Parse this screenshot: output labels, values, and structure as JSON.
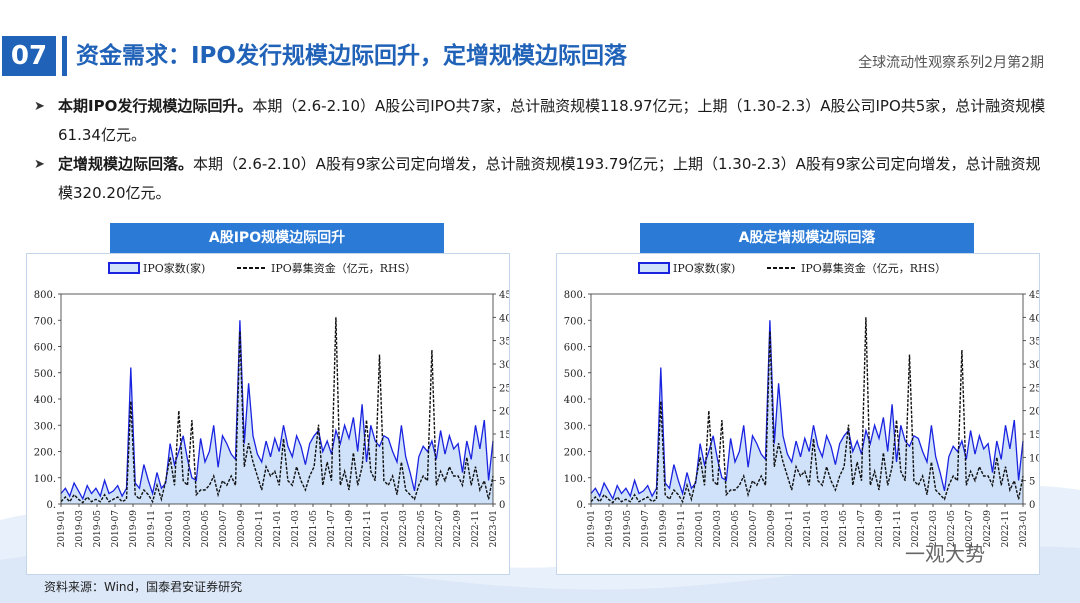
{
  "header": {
    "number": "07",
    "title": "资金需求：IPO发行规模边际回升，定增规模边际回落",
    "series": "全球流动性观察系列2月第2期"
  },
  "bullets": [
    {
      "bold": "本期IPO发行规模边际回升。",
      "text": "本期（2.6-2.10）A股公司IPO共7家，总计融资规模118.97亿元；上期（1.30-2.3）A股公司IPO共5家，总计融资规模61.34亿元。"
    },
    {
      "bold": "定增规模边际回落。",
      "text": "本期（2.6-2.10）A股有9家公司定向增发，总计融资规模193.79亿元；上期（1.30-2.3）A股有9家公司定向增发，总计融资规模320.20亿元。"
    }
  ],
  "source": "资料来源：Wind，国泰君安证券研究",
  "watermark": "一观大势",
  "colors": {
    "brand": "#1f62b8",
    "panel_header": "#2b7ad6",
    "series_line": "#1a23e0",
    "area_fill": "#cfe2fa"
  },
  "chart_data": [
    {
      "type": "area",
      "title": "A股IPO规模边际回升",
      "legend": [
        "IPO家数(家)",
        "IPO募集资金（亿元，RHS）"
      ],
      "legend_position": "top",
      "ylim": [
        0,
        800
      ],
      "y2lim": [
        0,
        45
      ],
      "yticks": [
        "0.",
        "100.",
        "200.",
        "300.",
        "400.",
        "500.",
        "600.",
        "700.",
        "800."
      ],
      "y2ticks": [
        "0",
        "5",
        "10",
        "15",
        "20",
        "25",
        "30",
        "35",
        "40",
        "45"
      ],
      "xticks": [
        "2019-01",
        "2019-03",
        "2019-05",
        "2019-07",
        "2019-09",
        "2019-11",
        "2020-01",
        "2020-03",
        "2020-05",
        "2020-07",
        "2020-09",
        "2020-11",
        "2021-01",
        "2021-03",
        "2021-05",
        "2021-07",
        "2021-09",
        "2021-11",
        "2022-01",
        "2022-03",
        "2022-05",
        "2022-07",
        "2022-09",
        "2022-11",
        "2023-01"
      ],
      "grid": false,
      "series": [
        {
          "name": "IPO家数(家)",
          "axis": "left",
          "style": "solid",
          "values": [
            40,
            60,
            30,
            80,
            50,
            20,
            70,
            40,
            60,
            30,
            90,
            40,
            50,
            70,
            30,
            60,
            520,
            80,
            60,
            150,
            90,
            40,
            120,
            60,
            80,
            230,
            150,
            200,
            260,
            170,
            100,
            90,
            250,
            160,
            200,
            300,
            140,
            260,
            230,
            190,
            170,
            700,
            230,
            460,
            260,
            190,
            160,
            240,
            180,
            250,
            200,
            300,
            220,
            180,
            260,
            220,
            150,
            230,
            260,
            280,
            200,
            240,
            190,
            280,
            230,
            300,
            250,
            330,
            200,
            380,
            160,
            300,
            240,
            220,
            260,
            250,
            200,
            160,
            300,
            180,
            120,
            50,
            180,
            220,
            200,
            240,
            170,
            280,
            190,
            260,
            210,
            230,
            120,
            240,
            170,
            300,
            210,
            320,
            90,
            240
          ]
        },
        {
          "name": "IPO募集资金（亿元，RHS）",
          "axis": "right",
          "style": "dashed",
          "values": [
            0.5,
            1.5,
            0.5,
            2,
            1,
            0.3,
            1.5,
            0.5,
            1,
            0.5,
            2,
            0.5,
            1,
            1.5,
            0.5,
            1,
            22,
            2,
            1,
            3,
            2,
            0.5,
            4,
            1,
            5,
            10,
            4,
            20,
            5,
            4,
            18,
            2,
            3,
            3,
            4,
            6,
            2,
            5,
            4,
            6,
            4,
            37,
            8,
            13,
            9,
            6,
            3,
            8,
            6,
            7,
            4,
            14,
            5,
            4,
            8,
            5,
            3,
            6,
            8,
            17,
            4,
            9,
            5,
            40,
            4,
            7,
            3,
            11,
            4,
            8,
            18,
            7,
            5,
            32,
            5,
            4,
            6,
            2,
            9,
            3,
            2,
            1,
            4,
            6,
            5,
            33,
            4,
            7,
            5,
            8,
            6,
            6,
            4,
            10,
            4,
            8,
            3,
            5,
            1,
            6
          ]
        }
      ]
    },
    {
      "type": "area",
      "title": "A股定增规模边际回落",
      "legend": [
        "IPO家数(家)",
        "IPO募集资金（亿元，RHS）"
      ],
      "legend_position": "top",
      "ylim": [
        0,
        800
      ],
      "y2lim": [
        0,
        45
      ],
      "yticks": [
        "0.",
        "100.",
        "200.",
        "300.",
        "400.",
        "500.",
        "600.",
        "700.",
        "800."
      ],
      "y2ticks": [
        "0",
        "5",
        "10",
        "15",
        "20",
        "25",
        "30",
        "35",
        "40",
        "45"
      ],
      "xticks": [
        "2019-01",
        "2019-03",
        "2019-05",
        "2019-07",
        "2019-09",
        "2019-11",
        "2020-01",
        "2020-03",
        "2020-05",
        "2020-07",
        "2020-09",
        "2020-11",
        "2021-01",
        "2021-03",
        "2021-05",
        "2021-07",
        "2021-09",
        "2021-11",
        "2022-01",
        "2022-03",
        "2022-05",
        "2022-07",
        "2022-09",
        "2022-11",
        "2023-01"
      ],
      "grid": false,
      "series": [
        {
          "name": "IPO家数(家)",
          "axis": "left",
          "style": "solid",
          "values": [
            40,
            60,
            30,
            80,
            50,
            20,
            70,
            40,
            60,
            30,
            90,
            40,
            50,
            70,
            30,
            60,
            520,
            80,
            60,
            150,
            90,
            40,
            120,
            60,
            80,
            230,
            150,
            200,
            260,
            170,
            100,
            90,
            250,
            160,
            200,
            300,
            140,
            260,
            230,
            190,
            170,
            700,
            230,
            460,
            260,
            190,
            160,
            240,
            180,
            250,
            200,
            300,
            220,
            180,
            260,
            220,
            150,
            230,
            260,
            280,
            200,
            240,
            190,
            280,
            230,
            300,
            250,
            330,
            200,
            380,
            160,
            300,
            240,
            220,
            260,
            250,
            200,
            160,
            300,
            180,
            120,
            50,
            180,
            220,
            200,
            240,
            170,
            280,
            190,
            260,
            210,
            230,
            120,
            240,
            170,
            300,
            210,
            320,
            90,
            240
          ]
        },
        {
          "name": "IPO募集资金（亿元，RHS）",
          "axis": "right",
          "style": "dashed",
          "values": [
            0.5,
            1.5,
            0.5,
            2,
            1,
            0.3,
            1.5,
            0.5,
            1,
            0.5,
            2,
            0.5,
            1,
            1.5,
            0.5,
            1,
            22,
            2,
            1,
            3,
            2,
            0.5,
            4,
            1,
            5,
            10,
            4,
            20,
            5,
            4,
            18,
            2,
            3,
            3,
            4,
            6,
            2,
            5,
            4,
            6,
            4,
            37,
            8,
            13,
            9,
            6,
            3,
            8,
            6,
            7,
            4,
            14,
            5,
            4,
            8,
            5,
            3,
            6,
            8,
            17,
            4,
            9,
            5,
            40,
            4,
            7,
            3,
            11,
            4,
            8,
            18,
            7,
            5,
            32,
            5,
            4,
            6,
            2,
            9,
            3,
            2,
            1,
            4,
            6,
            5,
            33,
            4,
            7,
            5,
            8,
            6,
            6,
            4,
            10,
            4,
            8,
            3,
            5,
            1,
            6
          ]
        }
      ]
    }
  ]
}
